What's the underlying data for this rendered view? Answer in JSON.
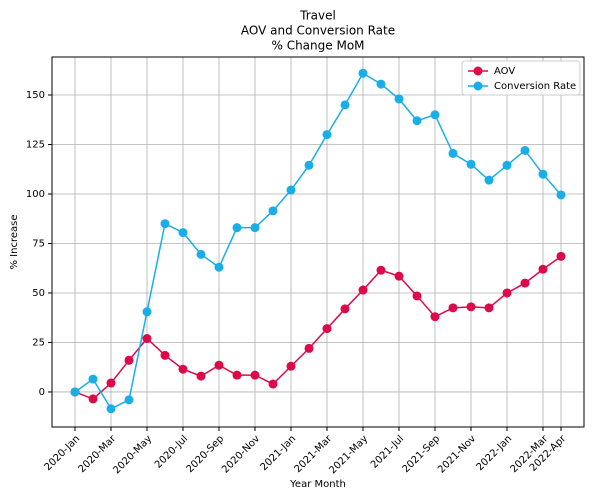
{
  "chart_data": {
    "type": "line",
    "title": [
      "Travel",
      "AOV and Conversion Rate",
      "% Change MoM"
    ],
    "x_label": "Year Month",
    "y_label": "% Increase",
    "categories": [
      "2020-Jan",
      null,
      "2020-Mar",
      null,
      "2020-May",
      null,
      "2020-Jul",
      null,
      "2020-Sep",
      null,
      "2020-Nov",
      null,
      "2021-Jan",
      null,
      "2021-Mar",
      null,
      "2021-May",
      null,
      "2021-Jul",
      null,
      "2021-Sep",
      null,
      "2021-Nov",
      null,
      "2022-Jan",
      null,
      "2022-Mar",
      "2022-Apr"
    ],
    "series": [
      {
        "name": "AOV",
        "color": "#dc0a4a",
        "values": [
          0,
          -3.5,
          4.5,
          16,
          27,
          18.5,
          11.5,
          8,
          13.5,
          8.5,
          8.5,
          4,
          13,
          22,
          32,
          42,
          51.5,
          61.5,
          58.5,
          48.5,
          38,
          42.5,
          43,
          42.5,
          50,
          55,
          62,
          68.5
        ]
      },
      {
        "name": "Conversion Rate",
        "color": "#1aaee8",
        "values": [
          0,
          6.5,
          -8.5,
          -4,
          40.5,
          85,
          80.5,
          69.5,
          63,
          83,
          83,
          91.5,
          102,
          114.5,
          130,
          145,
          161,
          155.5,
          148,
          137,
          140,
          120.5,
          115,
          107,
          114.5,
          122,
          110,
          99.5
        ]
      }
    ],
    "ylim": [
      -17.7,
      169.2
    ],
    "yticks": [
      0,
      25,
      50,
      75,
      100,
      125,
      150
    ],
    "grid": true,
    "legend": "upper right"
  }
}
